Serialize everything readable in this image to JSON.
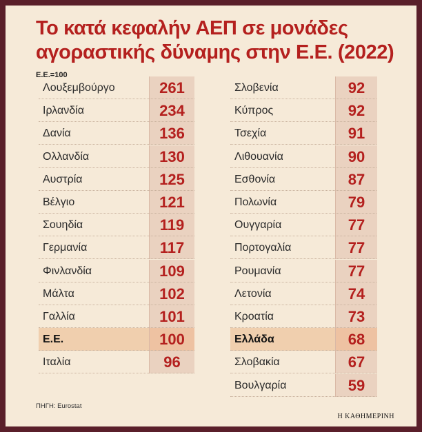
{
  "title_line1": "Το κατά κεφαλήν ΑΕΠ σε μονάδες",
  "title_line2": "αγοραστικής δύναμης στην Ε.Ε. (2022)",
  "index_note": "Ε.Ε.=100",
  "source": "ΠΗΓΗ: Eurostat",
  "brand": "Η ΚΑΘΗΜΕΡΙΝΗ",
  "colors": {
    "accent_red": "#b4201e",
    "highlight_row": "#f0cfae",
    "value_cell": "#ead2c0",
    "frame": "#5a1f2a"
  },
  "chart_data": {
    "type": "table",
    "title": "Το κατά κεφαλήν ΑΕΠ σε μονάδες αγοραστικής δύναμης στην Ε.Ε. (2022)",
    "unit": "Ε.Ε.=100",
    "highlighted": [
      "Ε.Ε.",
      "Ελλάδα"
    ],
    "left_column": [
      {
        "country": "Λουξεμβούργο",
        "value": 261
      },
      {
        "country": "Ιρλανδία",
        "value": 234
      },
      {
        "country": "Δανία",
        "value": 136
      },
      {
        "country": "Ολλανδία",
        "value": 130
      },
      {
        "country": "Αυστρία",
        "value": 125
      },
      {
        "country": "Βέλγιο",
        "value": 121
      },
      {
        "country": "Σουηδία",
        "value": 119
      },
      {
        "country": "Γερμανία",
        "value": 117
      },
      {
        "country": "Φινλανδία",
        "value": 109
      },
      {
        "country": "Μάλτα",
        "value": 102
      },
      {
        "country": "Γαλλία",
        "value": 101
      },
      {
        "country": "Ε.Ε.",
        "value": 100
      },
      {
        "country": "Ιταλία",
        "value": 96
      }
    ],
    "right_column": [
      {
        "country": "Σλοβενία",
        "value": 92
      },
      {
        "country": "Κύπρος",
        "value": 92
      },
      {
        "country": "Τσεχία",
        "value": 91
      },
      {
        "country": "Λιθουανία",
        "value": 90
      },
      {
        "country": "Εσθονία",
        "value": 87
      },
      {
        "country": "Πολωνία",
        "value": 79
      },
      {
        "country": "Ουγγαρία",
        "value": 77
      },
      {
        "country": "Πορτογαλία",
        "value": 77
      },
      {
        "country": "Ρουμανία",
        "value": 77
      },
      {
        "country": "Λετονία",
        "value": 74
      },
      {
        "country": "Κροατία",
        "value": 73
      },
      {
        "country": "Ελλάδα",
        "value": 68
      },
      {
        "country": "Σλοβακία",
        "value": 67
      },
      {
        "country": "Βουλγαρία",
        "value": 59
      }
    ]
  }
}
